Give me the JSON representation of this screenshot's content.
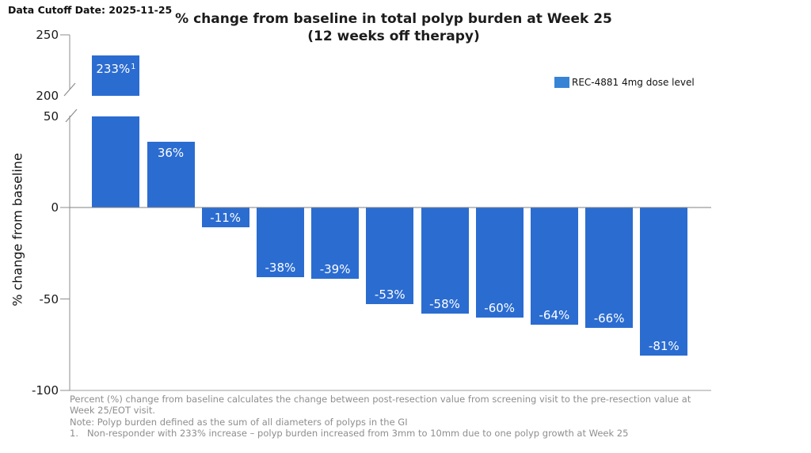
{
  "header": {
    "data_cutoff": "Data Cutoff Date: 2025-11-25"
  },
  "chart_data": {
    "type": "bar",
    "title_lines": [
      "% change from baseline in total polyp burden at Week 25",
      "(12 weeks off therapy)"
    ],
    "ylabel": "% change from baseline",
    "xlabel": "",
    "legend": [
      {
        "label": "REC-4881 4mg dose level",
        "color": "#3783d6"
      }
    ],
    "legend_position": "upper right",
    "series": [
      {
        "name": "REC-4881 4mg dose level",
        "values": [
          233,
          36,
          -11,
          -38,
          -39,
          -53,
          -58,
          -60,
          -64,
          -66,
          -81
        ]
      }
    ],
    "bar_labels": [
      "233%",
      "36%",
      "-11%",
      "-38%",
      "-39%",
      "-53%",
      "-58%",
      "-60%",
      "-64%",
      "-66%",
      "-81%"
    ],
    "bar_label_superscript": [
      "1",
      "",
      "",
      "",
      "",
      "",
      "",
      "",
      "",
      "",
      ""
    ],
    "bar_color": "#2b6cd1",
    "bar_label_color": "#ffffff",
    "y_ticks": [
      250,
      200,
      50,
      0,
      -50,
      -100
    ],
    "axis_break": {
      "lower_max": 50,
      "upper_min": 200
    },
    "ylim": [
      -100,
      250
    ],
    "grid": false
  },
  "footnotes": {
    "lines": [
      "Percent (%) change from baseline calculates the change between post-resection value from screening visit to the pre-resection value at",
      "Week 25/EOT visit.",
      "Note: Polyp burden defined as the sum of all diameters of polyps in the GI",
      "1.   Non-responder with 233% increase – polyp burden increased from 3mm to 10mm due to one polyp growth at Week 25"
    ]
  }
}
